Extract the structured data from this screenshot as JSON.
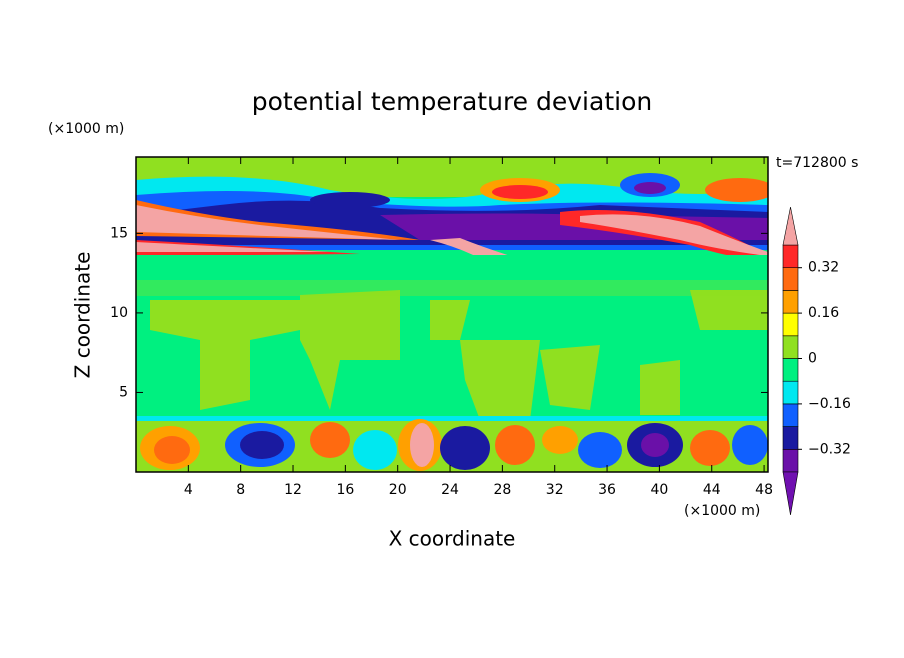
{
  "chart_data": {
    "type": "contour",
    "title": "potential temperature deviation",
    "x_label": "X coordinate",
    "y_label": "Z coordinate",
    "x_unit": "(×1000 m)",
    "y_unit": "(×1000 m)",
    "time_label": "t=712800 s",
    "xlim": [
      0,
      48.3
    ],
    "ylim": [
      0,
      19.8
    ],
    "xticks": [
      4,
      8,
      12,
      16,
      20,
      24,
      28,
      32,
      36,
      40,
      44,
      48
    ],
    "yticks": [
      5,
      10,
      15
    ],
    "colorbar": {
      "levels": [
        -0.4,
        -0.32,
        -0.24,
        -0.16,
        -0.08,
        0,
        0.08,
        0.16,
        0.24,
        0.32,
        0.4
      ],
      "colors": [
        "#6a10a8",
        "#1a1aa0",
        "#1060ff",
        "#00e8f0",
        "#00f080",
        "#90e020",
        "#ffff00",
        "#ffa000",
        "#ff6a10",
        "#ff2828"
      ],
      "under_color": "#7010b0",
      "over_color": "#f4a4a4",
      "ticks": [
        {
          "value": 0.32,
          "label": "0.32"
        },
        {
          "value": 0.16,
          "label": "0.16"
        },
        0,
        {
          "value": -0.16,
          "label": "−0.16"
        },
        {
          "value": -0.32,
          "label": "−0.32"
        }
      ]
    }
  }
}
